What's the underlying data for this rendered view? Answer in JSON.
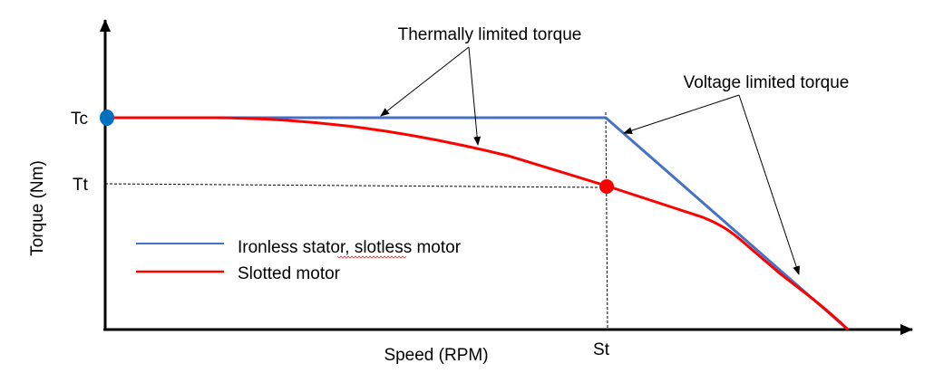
{
  "axes": {
    "x_label": "Speed (RPM)",
    "y_label": "Torque (Nm)",
    "y_ticks": [
      "Tc",
      "Tt"
    ],
    "x_ticks": [
      "St"
    ]
  },
  "annotations": {
    "thermal": "Thermally limited torque",
    "voltage": "Voltage limited torque"
  },
  "legend": {
    "items": [
      {
        "label": "Ironless stator, slotless motor",
        "color": "#4472c4"
      },
      {
        "label": "Slotted motor",
        "color": "#ff0000"
      }
    ]
  },
  "colors": {
    "slotless": "#4472c4",
    "slotted": "#ff0000",
    "tc_marker": "#0070c0",
    "tt_marker": "#ff0000"
  }
}
